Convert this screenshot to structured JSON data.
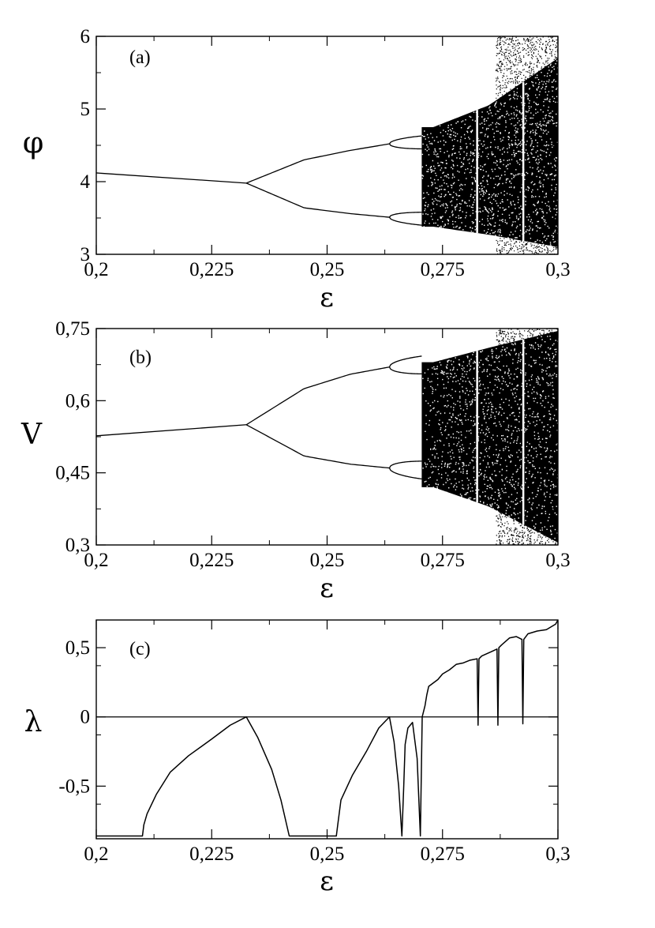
{
  "chart_data": [
    {
      "type": "scatter",
      "panel_label": "(a)",
      "xlabel": "ε",
      "ylabel": "φ",
      "xlim": [
        0.2,
        0.3
      ],
      "ylim": [
        3,
        6
      ],
      "xticks": [
        "0,2",
        "0,225",
        "0,25",
        "0,275",
        "0,3"
      ],
      "yticks": [
        "3",
        "4",
        "5",
        "6"
      ],
      "grid": false,
      "description_series": {
        "before_bifurcation": {
          "x": [
            0.2,
            0.2325
          ],
          "y": [
            4.12,
            3.98
          ]
        },
        "upper_branch": {
          "x": [
            0.2325,
            0.245,
            0.255,
            0.2635
          ],
          "y": [
            3.98,
            4.3,
            4.43,
            4.52
          ]
        },
        "lower_branch": {
          "x": [
            0.2325,
            0.245,
            0.255,
            0.2635
          ],
          "y": [
            3.98,
            3.64,
            3.56,
            3.51
          ]
        },
        "chaos_envelope_top": {
          "x": [
            0.273,
            0.285,
            0.3
          ],
          "y": [
            4.75,
            5.05,
            5.7
          ]
        },
        "chaos_envelope_bottom": {
          "x": [
            0.273,
            0.285,
            0.3
          ],
          "y": [
            3.38,
            3.27,
            3.1
          ]
        }
      }
    },
    {
      "type": "scatter",
      "panel_label": "(b)",
      "xlabel": "ε",
      "ylabel": "V",
      "xlim": [
        0.2,
        0.3
      ],
      "ylim": [
        0.3,
        0.75
      ],
      "xticks": [
        "0,2",
        "0,225",
        "0,25",
        "0,275",
        "0,3"
      ],
      "yticks": [
        "0,3",
        "0,45",
        "0,6",
        "0,75"
      ],
      "grid": false,
      "description_series": {
        "before_bifurcation": {
          "x": [
            0.2,
            0.2325
          ],
          "y": [
            0.527,
            0.55
          ]
        },
        "upper_branch": {
          "x": [
            0.2325,
            0.245,
            0.255,
            0.2635
          ],
          "y": [
            0.55,
            0.625,
            0.655,
            0.67
          ]
        },
        "lower_branch": {
          "x": [
            0.2325,
            0.245,
            0.255,
            0.2635
          ],
          "y": [
            0.55,
            0.485,
            0.468,
            0.46
          ]
        },
        "chaos_envelope_top": {
          "x": [
            0.273,
            0.285,
            0.3
          ],
          "y": [
            0.68,
            0.71,
            0.745
          ]
        },
        "chaos_envelope_bottom": {
          "x": [
            0.273,
            0.285,
            0.3
          ],
          "y": [
            0.42,
            0.38,
            0.305
          ]
        }
      }
    },
    {
      "type": "line",
      "panel_label": "(c)",
      "xlabel": "ε",
      "ylabel": "λ",
      "xlim": [
        0.2,
        0.3
      ],
      "ylim": [
        -0.88,
        0.7
      ],
      "xticks": [
        "0,2",
        "0,225",
        "0,25",
        "0,275",
        "0,3"
      ],
      "yticks": [
        "-0,5",
        "0",
        "0,5"
      ],
      "zero_line": true,
      "grid": false,
      "series": [
        {
          "x": [
            0.2,
            0.21,
            0.2103,
            0.211,
            0.213,
            0.216,
            0.22,
            0.225,
            0.229,
            0.2325,
            0.235,
            0.238,
            0.24,
            0.2418,
            0.2421,
            0.252,
            0.2523,
            0.253,
            0.2555,
            0.2585,
            0.2612,
            0.2635,
            0.2645,
            0.2655,
            0.2662,
            0.2666,
            0.2669,
            0.2675,
            0.2685,
            0.2695,
            0.2702,
            0.2706,
            0.2712,
            0.2716,
            0.272,
            0.2728,
            0.274,
            0.275,
            0.2765,
            0.278,
            0.2795,
            0.281,
            0.2825,
            0.2827,
            0.2829,
            0.2835,
            0.2855,
            0.2868,
            0.287,
            0.2872,
            0.2878,
            0.2895,
            0.291,
            0.2922,
            0.2924,
            0.2926,
            0.2935,
            0.2955,
            0.2975,
            0.2995,
            0.3
          ],
          "y": [
            -0.86,
            -0.86,
            -0.78,
            -0.7,
            -0.56,
            -0.4,
            -0.28,
            -0.16,
            -0.06,
            0.0,
            -0.15,
            -0.38,
            -0.6,
            -0.86,
            -0.86,
            -0.86,
            -0.78,
            -0.6,
            -0.42,
            -0.25,
            -0.08,
            0.0,
            -0.18,
            -0.5,
            -0.86,
            -0.5,
            -0.2,
            -0.08,
            -0.04,
            -0.3,
            -0.86,
            0.0,
            0.08,
            0.16,
            0.22,
            0.24,
            0.27,
            0.31,
            0.34,
            0.38,
            0.39,
            0.41,
            0.42,
            -0.06,
            0.42,
            0.44,
            0.47,
            0.49,
            -0.06,
            0.5,
            0.52,
            0.57,
            0.58,
            0.56,
            -0.05,
            0.56,
            0.6,
            0.62,
            0.63,
            0.67,
            0.7
          ]
        }
      ]
    }
  ]
}
